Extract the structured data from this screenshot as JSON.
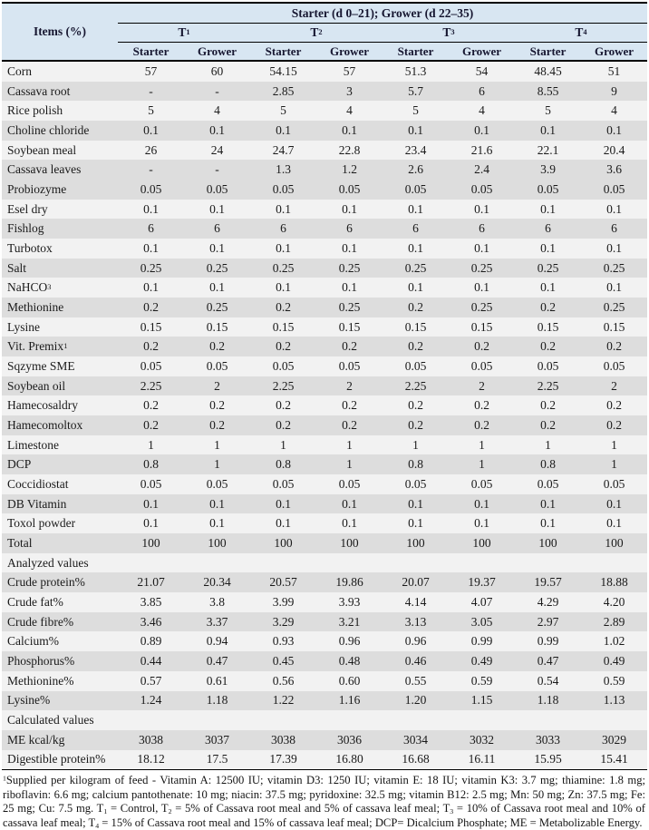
{
  "colors": {
    "header_bg": "#d8e6f2",
    "row_shade": "#dddddd",
    "row_light": "#f2f2f2",
    "border": "#000000",
    "header_text": "#161630"
  },
  "table": {
    "items_header": "Items (%)",
    "group_header": "Starter (d 0–21); Grower (d 22–35)",
    "treatments": [
      {
        "base": "T",
        "sub": "1"
      },
      {
        "base": "T",
        "sub": "2"
      },
      {
        "base": "T",
        "sub": "3"
      },
      {
        "base": "T",
        "sub": "4"
      }
    ],
    "phases": [
      "Starter",
      "Grower",
      "Starter",
      "Grower",
      "Starter",
      "Grower",
      "Starter",
      "Grower"
    ],
    "rows": [
      {
        "label": "Corn",
        "values": [
          "57",
          "60",
          "54.15",
          "57",
          "51.3",
          "54",
          "48.45",
          "51"
        ],
        "shade": false
      },
      {
        "label": "Cassava root",
        "values": [
          "-",
          "-",
          "2.85",
          "3",
          "5.7",
          "6",
          "8.55",
          "9"
        ],
        "shade": true
      },
      {
        "label": "Rice polish",
        "values": [
          "5",
          "4",
          "5",
          "4",
          "5",
          "4",
          "5",
          "4"
        ],
        "shade": false
      },
      {
        "label": "Choline chloride",
        "values": [
          "0.1",
          "0.1",
          "0.1",
          "0.1",
          "0.1",
          "0.1",
          "0.1",
          "0.1"
        ],
        "shade": true
      },
      {
        "label": "Soybean meal",
        "values": [
          "26",
          "24",
          "24.7",
          "22.8",
          "23.4",
          "21.6",
          "22.1",
          "20.4"
        ],
        "shade": false
      },
      {
        "label": "Cassava leaves",
        "values": [
          "-",
          "-",
          "1.3",
          "1.2",
          "2.6",
          "2.4",
          "3.9",
          "3.6"
        ],
        "shade": true
      },
      {
        "label": "Probiozyme",
        "values": [
          "0.05",
          "0.05",
          "0.05",
          "0.05",
          "0.05",
          "0.05",
          "0.05",
          "0.05"
        ],
        "shade": true
      },
      {
        "label": "Esel dry",
        "values": [
          "0.1",
          "0.1",
          "0.1",
          "0.1",
          "0.1",
          "0.1",
          "0.1",
          "0.1"
        ],
        "shade": false
      },
      {
        "label": "Fishlog",
        "values": [
          "6",
          "6",
          "6",
          "6",
          "6",
          "6",
          "6",
          "6"
        ],
        "shade": true
      },
      {
        "label": "Turbotox",
        "values": [
          "0.1",
          "0.1",
          "0.1",
          "0.1",
          "0.1",
          "0.1",
          "0.1",
          "0.1"
        ],
        "shade": false
      },
      {
        "label": "Salt",
        "values": [
          "0.25",
          "0.25",
          "0.25",
          "0.25",
          "0.25",
          "0.25",
          "0.25",
          "0.25"
        ],
        "shade": true
      },
      {
        "label": "NaHCO",
        "label_sub": "3",
        "values": [
          "0.1",
          "0.1",
          "0.1",
          "0.1",
          "0.1",
          "0.1",
          "0.1",
          "0.1"
        ],
        "shade": false
      },
      {
        "label": "Methionine",
        "values": [
          "0.2",
          "0.25",
          "0.2",
          "0.25",
          "0.2",
          "0.25",
          "0.2",
          "0.25"
        ],
        "shade": true
      },
      {
        "label": "Lysine",
        "values": [
          "0.15",
          "0.15",
          "0.15",
          "0.15",
          "0.15",
          "0.15",
          "0.15",
          "0.15"
        ],
        "shade": false
      },
      {
        "label": "Vit. Premix",
        "label_sup": "1",
        "values": [
          "0.2",
          "0.2",
          "0.2",
          "0.2",
          "0.2",
          "0.2",
          "0.2",
          "0.2"
        ],
        "shade": true
      },
      {
        "label": "Sqzyme SME",
        "values": [
          "0.05",
          "0.05",
          "0.05",
          "0.05",
          "0.05",
          "0.05",
          "0.05",
          "0.05"
        ],
        "shade": false
      },
      {
        "label": "Soybean oil",
        "values": [
          "2.25",
          "2",
          "2.25",
          "2",
          "2.25",
          "2",
          "2.25",
          "2"
        ],
        "shade": true
      },
      {
        "label": "Hamecosaldry",
        "values": [
          "0.2",
          "0.2",
          "0.2",
          "0.2",
          "0.2",
          "0.2",
          "0.2",
          "0.2"
        ],
        "shade": false
      },
      {
        "label": "Hamecomoltox",
        "values": [
          "0.2",
          "0.2",
          "0.2",
          "0.2",
          "0.2",
          "0.2",
          "0.2",
          "0.2"
        ],
        "shade": true
      },
      {
        "label": "Limestone",
        "values": [
          "1",
          "1",
          "1",
          "1",
          "1",
          "1",
          "1",
          "1"
        ],
        "shade": false
      },
      {
        "label": "DCP",
        "values": [
          "0.8",
          "1",
          "0.8",
          "1",
          "0.8",
          "1",
          "0.8",
          "1"
        ],
        "shade": true
      },
      {
        "label": "Coccidiostat",
        "values": [
          "0.05",
          "0.05",
          "0.05",
          "0.05",
          "0.05",
          "0.05",
          "0.05",
          "0.05"
        ],
        "shade": false
      },
      {
        "label": "DB Vitamin",
        "values": [
          "0.1",
          "0.1",
          "0.1",
          "0.1",
          "0.1",
          "0.1",
          "0.1",
          "0.1"
        ],
        "shade": true
      },
      {
        "label": "Toxol powder",
        "values": [
          "0.1",
          "0.1",
          "0.1",
          "0.1",
          "0.1",
          "0.1",
          "0.1",
          "0.1"
        ],
        "shade": false
      },
      {
        "label": "Total",
        "values": [
          "100",
          "100",
          "100",
          "100",
          "100",
          "100",
          "100",
          "100"
        ],
        "shade": true
      },
      {
        "label": "Analyzed values",
        "section": true,
        "shade": false
      },
      {
        "label": "Crude protein%",
        "values": [
          "21.07",
          "20.34",
          "20.57",
          "19.86",
          "20.07",
          "19.37",
          "19.57",
          "18.88"
        ],
        "shade": true
      },
      {
        "label": "Crude fat%",
        "values": [
          "3.85",
          "3.8",
          "3.99",
          "3.93",
          "4.14",
          "4.07",
          "4.29",
          "4.20"
        ],
        "shade": false
      },
      {
        "label": "Crude fibre%",
        "values": [
          "3.46",
          "3.37",
          "3.29",
          "3.21",
          "3.13",
          "3.05",
          "2.97",
          "2.89"
        ],
        "shade": true
      },
      {
        "label": "Calcium%",
        "values": [
          "0.89",
          "0.94",
          "0.93",
          "0.96",
          "0.96",
          "0.99",
          "0.99",
          "1.02"
        ],
        "shade": false
      },
      {
        "label": "Phosphorus%",
        "values": [
          "0.44",
          "0.47",
          "0.45",
          "0.48",
          "0.46",
          "0.49",
          "0.47",
          "0.49"
        ],
        "shade": true
      },
      {
        "label": "Methionine%",
        "values": [
          "0.57",
          "0.61",
          "0.56",
          "0.60",
          "0.55",
          "0.59",
          "0.54",
          "0.59"
        ],
        "shade": false
      },
      {
        "label": "Lysine%",
        "values": [
          "1.24",
          "1.18",
          "1.22",
          "1.16",
          "1.20",
          "1.15",
          "1.18",
          "1.13"
        ],
        "shade": true
      },
      {
        "label": "Calculated values",
        "section": true,
        "shade": false
      },
      {
        "label": "ME kcal/kg",
        "values": [
          "3038",
          "3037",
          "3038",
          "3036",
          "3034",
          "3032",
          "3033",
          "3029"
        ],
        "shade": true
      },
      {
        "label": "Digestible protein%",
        "values": [
          "18.12",
          "17.5",
          "17.39",
          "16.80",
          "16.68",
          "16.11",
          "15.95",
          "15.41"
        ],
        "shade": false
      }
    ]
  },
  "footnote": {
    "segments": [
      {
        "text": "1",
        "sup": true
      },
      {
        "text": "Supplied per kilogram of feed - Vitamin A: 12500 IU; vitamin D3: 1250 IU; vitamin E: 18 IU; vitamin K3: 3.7 mg; thiamine: 1.8 mg; riboflavin: 6.6 mg; calcium pantothenate: 10 mg; niacin: 37.5 mg; pyridoxine: 32.5 mg; vitamin B12: 2.5 mg; Mn: 50 mg; Zn: 37.5 mg; Fe: 25 mg; Cu: 7.5 mg. T"
      },
      {
        "text": "1",
        "sub": true
      },
      {
        "text": " = Control, T"
      },
      {
        "text": "2",
        "sub": true
      },
      {
        "text": " = 5% of Cassava root meal and 5% of cassava leaf meal; T"
      },
      {
        "text": "3",
        "sub": true
      },
      {
        "text": " = 10% of Cassava root meal and 10% of cassava leaf meal; T"
      },
      {
        "text": "4",
        "sub": true
      },
      {
        "text": " = 15% of Cassava root meal and 15% of cassava leaf meal; DCP= Dicalcium Phosphate; ME = Metabolizable Energy."
      }
    ]
  }
}
